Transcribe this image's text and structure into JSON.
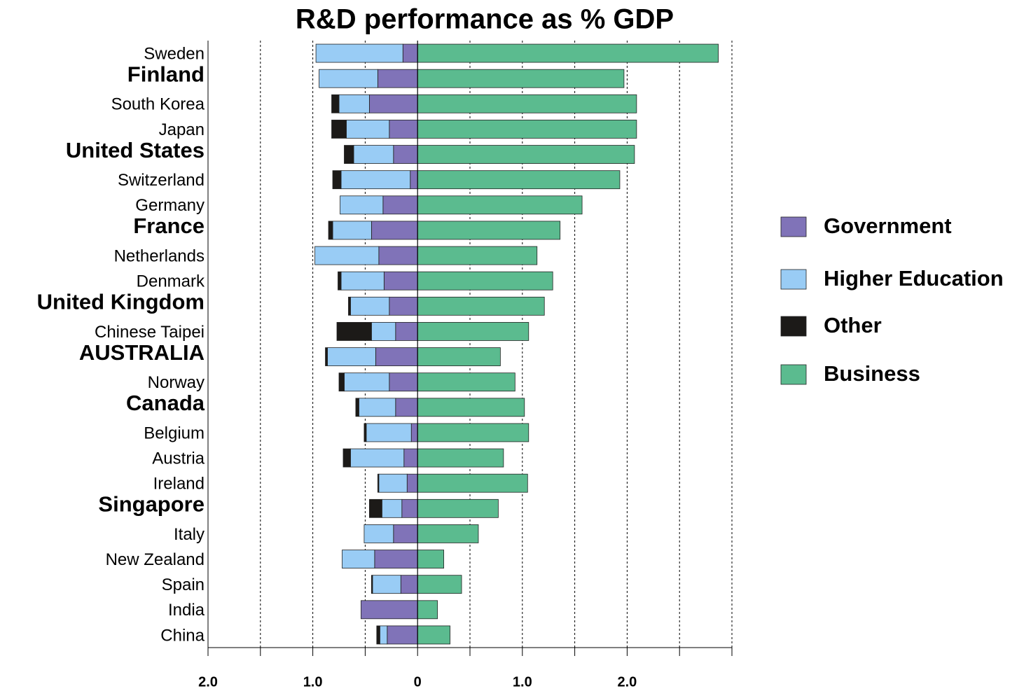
{
  "chart_data": {
    "type": "diverging-bar",
    "title": "R&D performance as % GDP",
    "categories": [
      "Sweden",
      "Finland",
      "South Korea",
      "Japan",
      "United States",
      "Switzerland",
      "Germany",
      "France",
      "Netherlands",
      "Denmark",
      "United Kingdom",
      "Chinese Taipei",
      "AUSTRALIA",
      "Norway",
      "Canada",
      "Belgium",
      "Austria",
      "Ireland",
      "Singapore",
      "Italy",
      "New Zealand",
      "Spain",
      "India",
      "China"
    ],
    "bold_categories": [
      1,
      4,
      7,
      10,
      12,
      14,
      18
    ],
    "series": [
      {
        "name": "Government",
        "color": "#8073b8",
        "values": [
          -0.14,
          -0.38,
          -0.46,
          -0.27,
          -0.23,
          -0.07,
          -0.33,
          -0.44,
          -0.37,
          -0.32,
          -0.27,
          -0.21,
          -0.4,
          -0.27,
          -0.21,
          -0.06,
          -0.13,
          -0.1,
          -0.15,
          -0.23,
          -0.41,
          -0.16,
          -0.54,
          -0.29
        ]
      },
      {
        "name": "Higher Education",
        "color": "#99ccf5",
        "values": [
          -0.83,
          -0.56,
          -0.29,
          -0.41,
          -0.38,
          -0.66,
          -0.41,
          -0.37,
          -0.61,
          -0.41,
          -0.37,
          -0.23,
          -0.46,
          -0.43,
          -0.35,
          -0.43,
          -0.51,
          -0.27,
          -0.19,
          -0.28,
          -0.31,
          -0.27,
          0,
          -0.07
        ]
      },
      {
        "name": "Other",
        "color": "#1c1a18",
        "values": [
          0,
          0,
          -0.07,
          -0.14,
          -0.09,
          -0.08,
          0,
          -0.04,
          0,
          -0.03,
          -0.02,
          -0.33,
          -0.02,
          -0.05,
          -0.03,
          -0.02,
          -0.07,
          -0.01,
          -0.12,
          0,
          0,
          -0.01,
          0,
          -0.03
        ]
      },
      {
        "name": "Business",
        "color": "#5bbb8f",
        "values": [
          2.87,
          1.97,
          2.09,
          2.09,
          2.07,
          1.93,
          1.57,
          1.36,
          1.14,
          1.29,
          1.21,
          1.06,
          0.79,
          0.93,
          1.02,
          1.06,
          0.82,
          1.05,
          0.77,
          0.58,
          0.25,
          0.42,
          0.19,
          0.31
        ]
      }
    ],
    "xlim": [
      -2,
      3
    ],
    "xticks": [
      {
        "value": -2,
        "label": "2.0"
      },
      {
        "value": -1.5,
        "label": null
      },
      {
        "value": -1,
        "label": "1.0"
      },
      {
        "value": -0.5,
        "label": null
      },
      0,
      {
        "value": 0.5,
        "label": null
      },
      {
        "value": 1,
        "label": "1.0"
      },
      {
        "value": 1.5,
        "label": null
      },
      {
        "value": 2,
        "label": "2.0"
      },
      {
        "value": 2.5,
        "label": null
      },
      {
        "value": 3,
        "label": null
      }
    ],
    "grid": true,
    "legend": "right"
  }
}
